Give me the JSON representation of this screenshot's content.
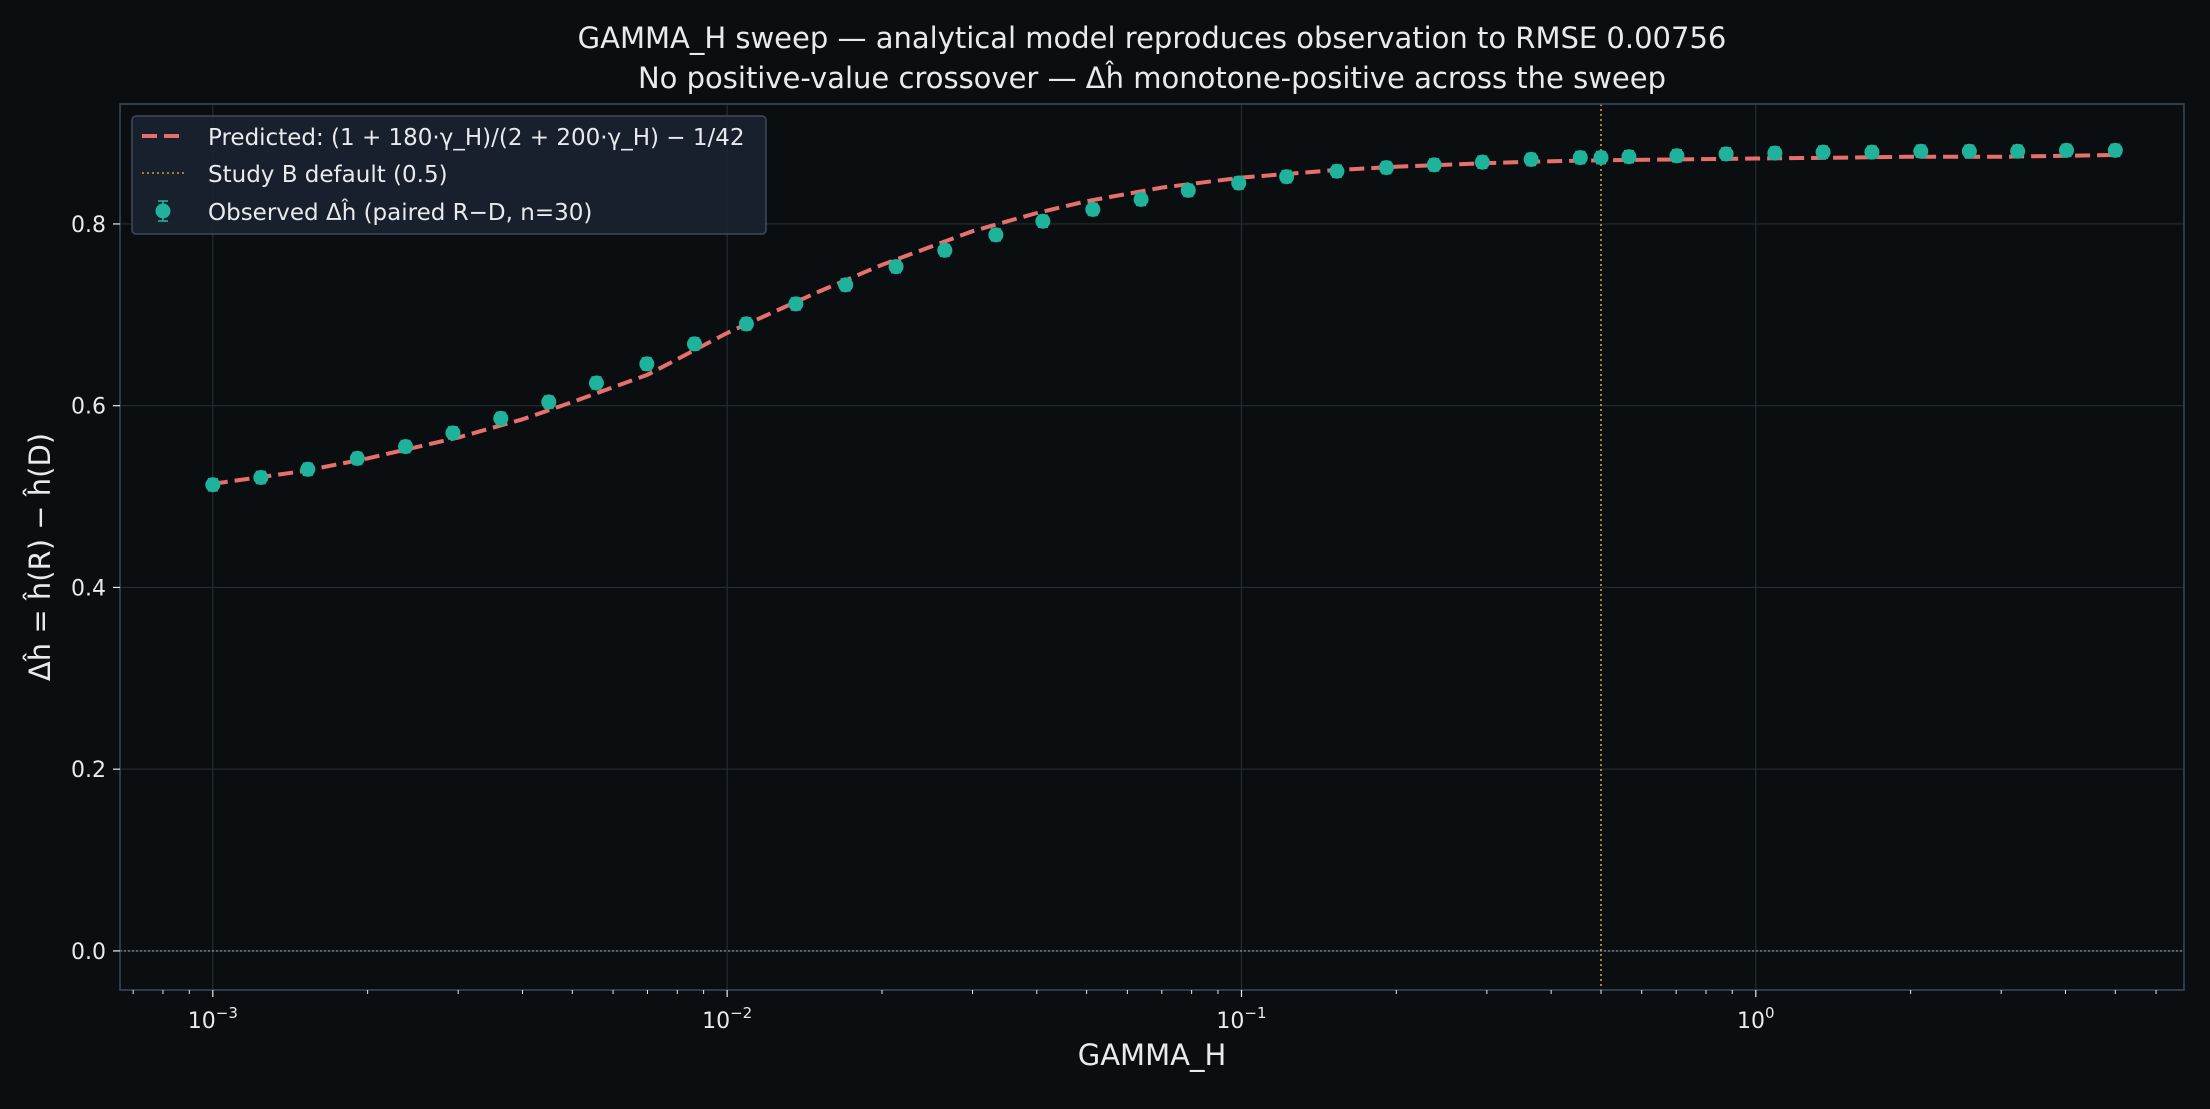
{
  "colors": {
    "background": "#0b0e10",
    "axes_frame": "#3d4a5c",
    "grid": "#252c33",
    "text": "#e8eaed",
    "predicted_line": "#e8706c",
    "observed_marker": "#1fb39c",
    "default_vline": "#c9a227",
    "zero_line": "#9aa3ad",
    "legend_bg": "#1a2230",
    "legend_border": "#3d4a5c"
  },
  "chart_data": {
    "type": "scatter",
    "title": "GAMMA_H sweep — analytical model reproduces observation to RMSE 0.00756",
    "subtitle": "No positive-value crossover — Δĥ monotone-positive across the sweep",
    "xlabel": "GAMMA_H",
    "ylabel": "Δĥ = ĥ(R) − ĥ(D)",
    "x_scale": "log",
    "xlim": [
      0.00066,
      6.8
    ],
    "ylim": [
      -0.043,
      0.932
    ],
    "x_ticks": [
      {
        "value": 0.001,
        "base": "10",
        "exp": "−3"
      },
      {
        "value": 0.01,
        "base": "10",
        "exp": "−2"
      },
      {
        "value": 0.1,
        "base": "10",
        "exp": "−1"
      },
      {
        "value": 1,
        "base": "10",
        "exp": "0"
      }
    ],
    "y_ticks": [
      {
        "value": 0.0,
        "label": "0.0"
      },
      {
        "value": 0.2,
        "label": "0.2"
      },
      {
        "value": 0.4,
        "label": "0.4"
      },
      {
        "value": 0.6,
        "label": "0.6"
      },
      {
        "value": 0.8,
        "label": "0.8"
      }
    ],
    "grid": true,
    "legend_placement": "top-left",
    "legend": [
      {
        "key": "predicted",
        "label": "Predicted: (1 + 180·γ_H)/(2 + 200·γ_H) − 1/42"
      },
      {
        "key": "default",
        "label": "Study B default (0.5)"
      },
      {
        "key": "observed",
        "label": "Observed Δĥ (paired R−D, n=30)"
      }
    ],
    "vline": {
      "x": 0.5
    },
    "hline": {
      "y": 0.0
    },
    "series": [
      {
        "key": "predicted",
        "type": "line",
        "x": [
          0.001,
          0.0015,
          0.002,
          0.003,
          0.004,
          0.005,
          0.007,
          0.01,
          0.015,
          0.02,
          0.03,
          0.04,
          0.05,
          0.07,
          0.1,
          0.15,
          0.2,
          0.3,
          0.4,
          0.5,
          0.7,
          1.0,
          1.5,
          2.0,
          3.0,
          4.0,
          5.0
        ],
        "y": [
          0.514,
          0.528,
          0.542,
          0.565,
          0.585,
          0.604,
          0.634,
          0.68,
          0.725,
          0.755,
          0.792,
          0.812,
          0.825,
          0.84,
          0.851,
          0.859,
          0.863,
          0.867,
          0.869,
          0.87,
          0.871,
          0.872,
          0.873,
          0.874,
          0.874,
          0.875,
          0.876
        ]
      },
      {
        "key": "observed",
        "type": "scatter",
        "x": [
          0.001,
          0.00124,
          0.00153,
          0.00191,
          0.00237,
          0.00293,
          0.00363,
          0.0045,
          0.00557,
          0.00698,
          0.00864,
          0.0109,
          0.0136,
          0.017,
          0.0213,
          0.0265,
          0.0333,
          0.0411,
          0.0514,
          0.0638,
          0.0788,
          0.0988,
          0.1224,
          0.1533,
          0.1913,
          0.237,
          0.294,
          0.3657,
          0.4557,
          0.5,
          0.5667,
          0.7024,
          0.8754,
          1.089,
          1.3514,
          1.6818,
          2.0931,
          2.6009,
          3.2294,
          4.018,
          5.0
        ],
        "y": [
          0.513,
          0.521,
          0.53,
          0.542,
          0.555,
          0.57,
          0.586,
          0.604,
          0.625,
          0.646,
          0.668,
          0.69,
          0.712,
          0.733,
          0.753,
          0.771,
          0.788,
          0.803,
          0.816,
          0.827,
          0.837,
          0.845,
          0.852,
          0.858,
          0.862,
          0.865,
          0.868,
          0.871,
          0.873,
          0.873,
          0.874,
          0.875,
          0.877,
          0.878,
          0.879,
          0.879,
          0.88,
          0.88,
          0.88,
          0.881,
          0.881
        ]
      }
    ]
  }
}
